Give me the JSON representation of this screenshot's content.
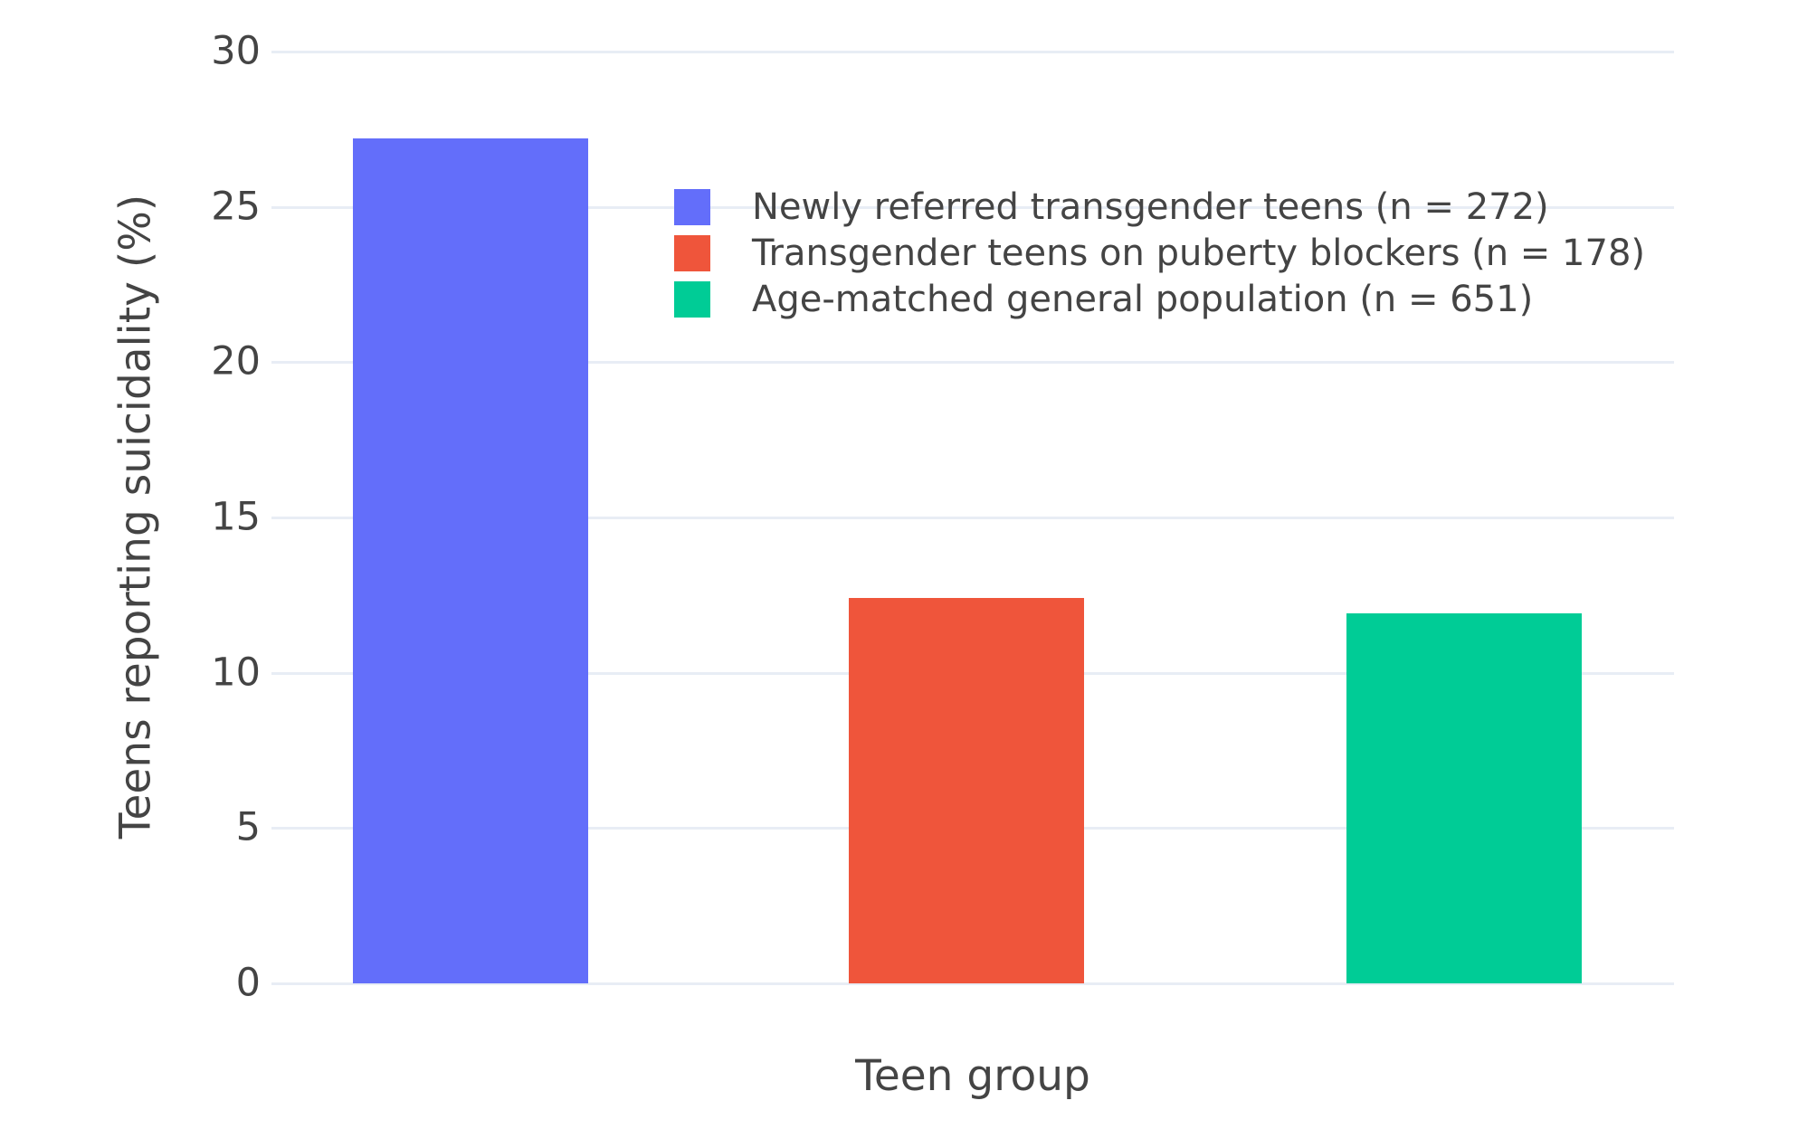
{
  "chart_data": {
    "type": "bar",
    "title": "",
    "xlabel": "Teen group",
    "ylabel": "Teens reporting suicidality (%)",
    "ylim": [
      0,
      30
    ],
    "yticks": [
      0,
      5,
      10,
      15,
      20,
      25,
      30
    ],
    "grid": true,
    "legend_position": "inside-top-center",
    "categories": [
      "Newly referred transgender teens (n = 272)",
      "Transgender teens on puberty blockers (n = 178)",
      "Age-matched general population (n = 651)"
    ],
    "series": [
      {
        "name": "Newly referred transgender teens (n = 272)",
        "n": 272,
        "value": 27.2,
        "color": "#636EFA"
      },
      {
        "name": "Transgender teens on puberty blockers (n = 178)",
        "n": 178,
        "value": 12.4,
        "color": "#EF553B"
      },
      {
        "name": "Age-matched general population (n = 651)",
        "n": 651,
        "value": 11.9,
        "color": "#00CC96"
      }
    ],
    "colors": {
      "bar_blue": "#636EFA",
      "bar_red": "#EF553B",
      "bar_green": "#00CC96",
      "gridline": "#E8EDF5",
      "text": "#444444",
      "background": "#FFFFFF"
    }
  }
}
